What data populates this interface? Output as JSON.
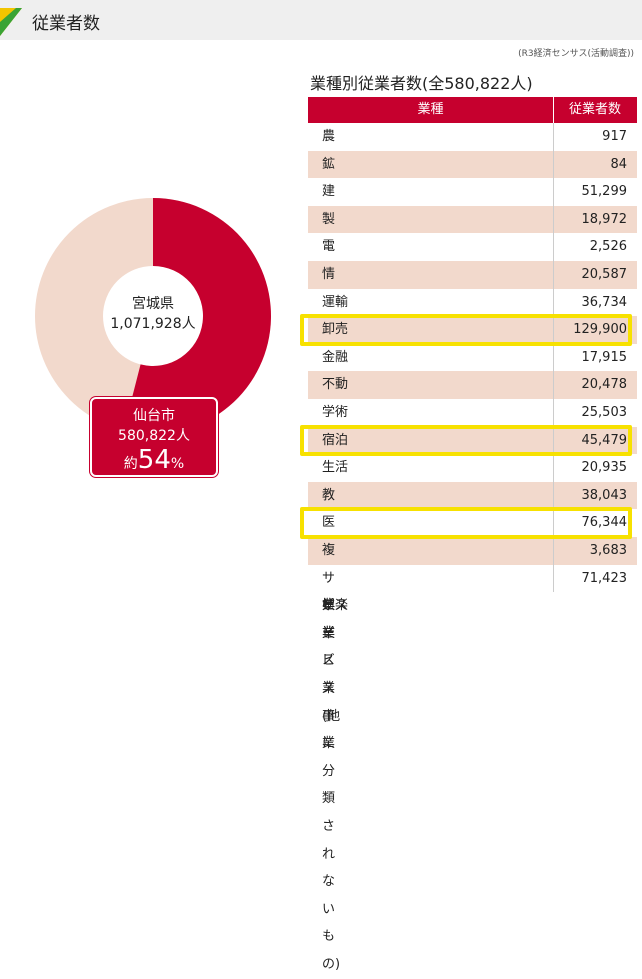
{
  "header": {
    "title": "従業者数",
    "source": "(R3経済センサス(活動調査))"
  },
  "chart_data": {
    "type": "donut",
    "center_name": "宮城県",
    "center_total": "1,071,928人",
    "highlight_name": "仙台市",
    "highlight_total": "580,822人",
    "percent_prefix": "約",
    "percent": 54,
    "percent_unit": "%",
    "color": "#c6002e",
    "rest_color": "#f2d9cc"
  },
  "table": {
    "title": "業種別従業者数(全580,822人)",
    "headers": [
      "業種",
      "従業者数"
    ],
    "highlight_color": "#f7e100",
    "rows": [
      {
        "name": "農林漁業",
        "value": "917",
        "highlight": false
      },
      {
        "name": "鉱業、採石業、砂利採取業",
        "value": "84",
        "highlight": false
      },
      {
        "name": "建設業",
        "value": "51,299",
        "highlight": false
      },
      {
        "name": "製造業",
        "value": "18,972",
        "highlight": false
      },
      {
        "name": "電気・ガス・熱供給・水道業",
        "value": "2,526",
        "highlight": false
      },
      {
        "name": "情報通信業",
        "value": "20,587",
        "highlight": false
      },
      {
        "name": "運輸業、郵便業",
        "value": "36,734",
        "highlight": false
      },
      {
        "name": "卸売業、小売業",
        "value": "129,900",
        "highlight": true
      },
      {
        "name": "金融業、保険業",
        "value": "17,915",
        "highlight": false
      },
      {
        "name": "不動産業、物品賃貸業",
        "value": "20,478",
        "highlight": false
      },
      {
        "name": "学術研究、専門・技術サービス業",
        "value": "25,503",
        "highlight": false
      },
      {
        "name": "宿泊業、飲食サービス業",
        "value": "45,479",
        "highlight": true
      },
      {
        "name": "生活関連サービス業、娯楽業",
        "value": "20,935",
        "highlight": false
      },
      {
        "name": "教育、学習支援業",
        "value": "38,043",
        "highlight": false
      },
      {
        "name": "医療、福祉",
        "value": "76,344",
        "highlight": true
      },
      {
        "name": "複合サービス事業",
        "value": "3,683",
        "highlight": false
      },
      {
        "name": "サービス業(他に分類されないもの)",
        "value": "71,423",
        "highlight": false
      }
    ]
  }
}
